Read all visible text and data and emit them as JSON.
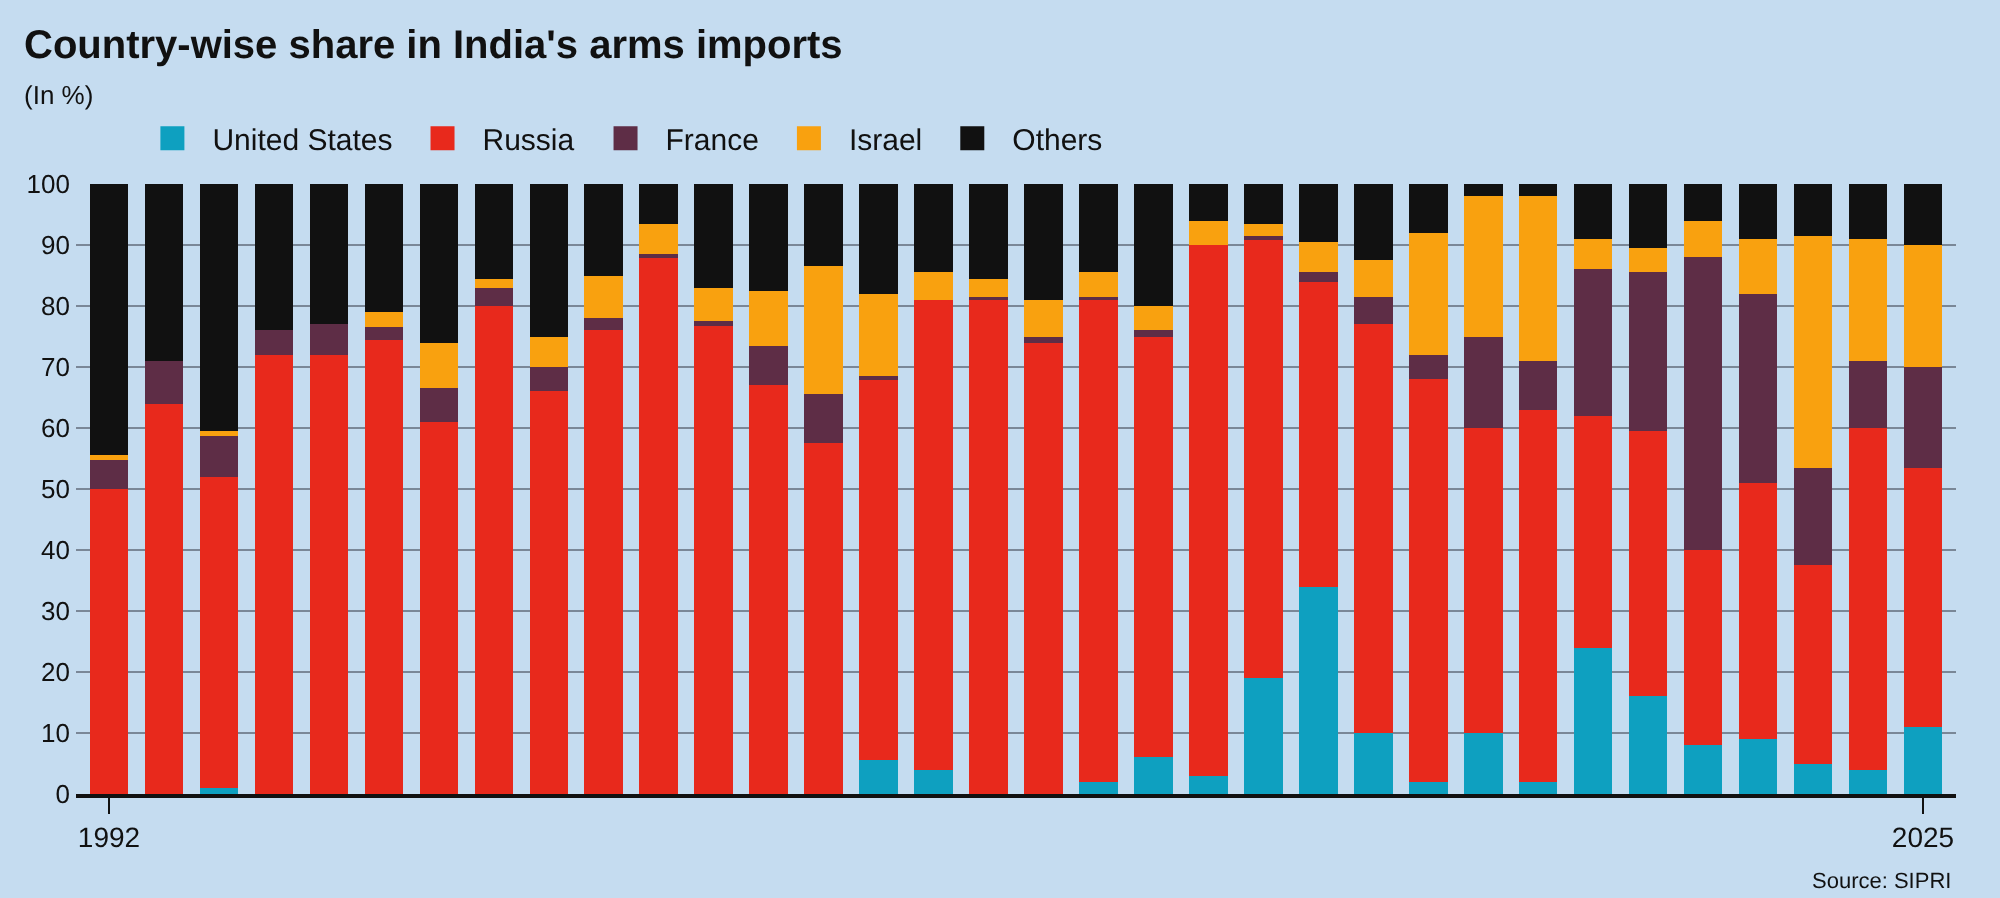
{
  "chart_data": {
    "type": "bar",
    "stacked": true,
    "title": "Country-wise share in India's arms imports",
    "subtitle": "(In %)",
    "annotations": [
      "Source: SIPRI"
    ],
    "categories": [
      "1992",
      null,
      null,
      null,
      null,
      null,
      null,
      null,
      null,
      null,
      null,
      null,
      null,
      null,
      null,
      null,
      null,
      null,
      null,
      null,
      null,
      null,
      null,
      null,
      null,
      null,
      null,
      null,
      null,
      null,
      null,
      null,
      null,
      "2025"
    ],
    "series": [
      {
        "name": "United States",
        "color": "#0ea0c0",
        "values": [
          0,
          0,
          1,
          0,
          0,
          0,
          0,
          0,
          0,
          0,
          0,
          0,
          0,
          0,
          5.5,
          4,
          0,
          0,
          2,
          6,
          3,
          19,
          34,
          10,
          2,
          10,
          2,
          24,
          16,
          8,
          9,
          5,
          4,
          11
        ]
      },
      {
        "name": "Russia",
        "color": "#e8291c",
        "values": [
          50,
          64,
          51,
          72,
          72,
          74.5,
          61,
          80,
          66,
          76,
          88,
          77,
          67,
          57.5,
          62.5,
          77,
          81,
          74,
          79,
          69,
          87,
          72,
          50,
          67,
          66,
          50,
          61,
          38,
          43.5,
          32,
          42,
          32.5,
          56,
          42.5
        ]
      },
      {
        "name": "France",
        "color": "#5e2d46",
        "values": [
          5,
          7,
          7,
          4,
          5,
          2,
          5.5,
          3,
          4,
          2,
          0.5,
          0.5,
          6.5,
          8,
          0.5,
          0,
          0.5,
          1,
          0.5,
          1,
          0,
          0.5,
          1.5,
          4.5,
          4,
          15,
          8,
          24,
          26,
          48,
          31,
          16,
          11,
          16.5
        ]
      },
      {
        "name": "Israel",
        "color": "#f9a10f",
        "values": [
          0.5,
          0,
          0.5,
          0,
          0,
          2.5,
          7.5,
          1.5,
          5,
          7,
          5,
          5.5,
          9,
          21,
          13.5,
          4.5,
          3,
          6,
          4,
          4,
          4,
          2,
          5,
          6,
          20,
          23,
          27,
          5,
          4,
          6,
          9,
          38,
          20,
          20
        ]
      },
      {
        "name": "Others",
        "color": "#111111",
        "values": [
          44.5,
          29,
          40.5,
          24,
          23,
          21,
          26,
          15.5,
          25,
          15,
          6.5,
          17,
          17.5,
          13.5,
          18,
          14.5,
          15.5,
          19,
          14.5,
          20,
          6,
          6.5,
          9.5,
          12.5,
          8,
          2,
          2,
          9,
          10.5,
          6,
          9,
          8.5,
          9,
          10
        ]
      }
    ],
    "ylim": [
      0,
      100
    ],
    "yticks": [
      0,
      10,
      20,
      30,
      40,
      50,
      60,
      70,
      80,
      90,
      100
    ],
    "grid": "y",
    "legend": "top left"
  }
}
